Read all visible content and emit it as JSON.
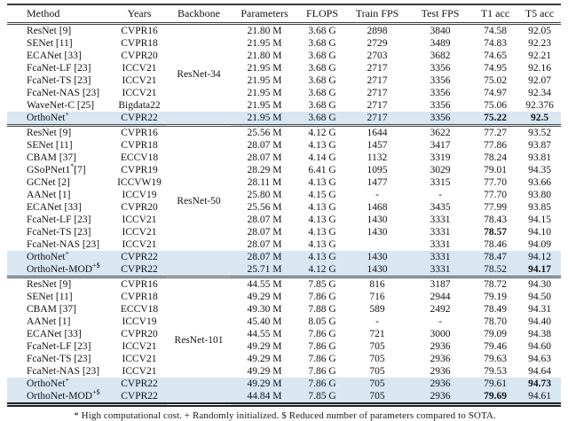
{
  "table": {
    "columns": [
      "Method",
      "Years",
      "Backbone",
      "Parameters",
      "FLOPS",
      "Train FPS",
      "Test FPS",
      "T1 acc",
      "T5 acc"
    ],
    "groups": [
      {
        "backbone": "ResNet-34",
        "label_row": 3,
        "rows": [
          {
            "method": {
              "text": "ResNet",
              "sup": "",
              "after": " [9]"
            },
            "years": "CVPR16",
            "params": "21.80 M",
            "flops": "3.68 G",
            "train_fps": "2898",
            "test_fps": "3840",
            "t1": "74.58",
            "t5": "92.05"
          },
          {
            "method": {
              "text": "SENet",
              "sup": "",
              "after": " [11]"
            },
            "years": "CVPR18",
            "params": "21.95 M",
            "flops": "3.68 G",
            "train_fps": "2729",
            "test_fps": "3489",
            "t1": "74.83",
            "t5": "92.23"
          },
          {
            "method": {
              "text": "ECANet",
              "sup": "",
              "after": " [33]"
            },
            "years": "CVPR20",
            "params": "21.80 M",
            "flops": "3.68 G",
            "train_fps": "2703",
            "test_fps": "3682",
            "t1": "74.65",
            "t5": "92.21"
          },
          {
            "method": {
              "text": "FcaNet-LF",
              "sup": "",
              "after": " [23]"
            },
            "years": "ICCV21",
            "params": "21.95 M",
            "flops": "3.68 G",
            "train_fps": "2717",
            "test_fps": "3356",
            "t1": "74.95",
            "t5": "92.16"
          },
          {
            "method": {
              "text": "FcaNet-TS",
              "sup": "",
              "after": " [23]"
            },
            "years": "ICCV21",
            "params": "21.95 M",
            "flops": "3.68 G",
            "train_fps": "2717",
            "test_fps": "3356",
            "t1": "75.02",
            "t5": "92.07"
          },
          {
            "method": {
              "text": "FcaNet-NAS",
              "sup": "",
              "after": " [23]"
            },
            "years": "ICCV21",
            "params": "21.95 M",
            "flops": "3.68 G",
            "train_fps": "2717",
            "test_fps": "3356",
            "t1": "74.97",
            "t5": "92.34"
          },
          {
            "method": {
              "text": "WaveNet-C",
              "sup": "",
              "after": " [25]"
            },
            "years": "Bigdata22",
            "params": "21.95 M",
            "flops": "3.68 G",
            "train_fps": "2717",
            "test_fps": "3356",
            "t1": "75.06",
            "t5": "92.376"
          },
          {
            "method": {
              "text": "OrthoNet",
              "sup": "+",
              "after": ""
            },
            "years": "CVPR22",
            "params": "21.95 M",
            "flops": "3.68 G",
            "train_fps": "2717",
            "test_fps": "3356",
            "t1": "75.22",
            "t5": "92.5",
            "t1_bold": true,
            "t5_bold": true,
            "hl": true
          }
        ]
      },
      {
        "backbone": "ResNet-50",
        "label_row": 5,
        "rows": [
          {
            "method": {
              "text": "ResNet",
              "sup": "",
              "after": " [9]"
            },
            "years": "CVPR16",
            "params": "25.56 M",
            "flops": "4.12 G",
            "train_fps": "1644",
            "test_fps": "3622",
            "t1": "77.27",
            "t5": "93.52"
          },
          {
            "method": {
              "text": "SENet",
              "sup": "",
              "after": " [11]"
            },
            "years": "CVPR18",
            "params": "28.07 M",
            "flops": "4.13 G",
            "train_fps": "1457",
            "test_fps": "3417",
            "t1": "77.86",
            "t5": "93.87"
          },
          {
            "method": {
              "text": "CBAM",
              "sup": "",
              "after": " [37]"
            },
            "years": "ECCV18",
            "params": "28.07 M",
            "flops": "4.14 G",
            "train_fps": "1132",
            "test_fps": "3319",
            "t1": "78.24",
            "t5": "93.81"
          },
          {
            "method": {
              "text": "GSoPNet1",
              "sup": "*",
              "after": "[7]"
            },
            "years": "CVPR19",
            "params": "28.29 M",
            "flops": "6.41 G",
            "train_fps": "1095",
            "test_fps": "3029",
            "t1": "79.01",
            "t5": "94.35"
          },
          {
            "method": {
              "text": "GCNet",
              "sup": "",
              "after": " [2]"
            },
            "years": "ICCVW19",
            "params": "28.11 M",
            "flops": "4.13 G",
            "train_fps": "1477",
            "test_fps": "3315",
            "t1": "77.70",
            "t5": "93.66"
          },
          {
            "method": {
              "text": "AANet",
              "sup": "",
              "after": " [1]"
            },
            "years": "ICCV19",
            "params": "25.80 M",
            "flops": "4.15 G",
            "train_fps": "-",
            "test_fps": "-",
            "t1": "77.70",
            "t5": "93.80"
          },
          {
            "method": {
              "text": "ECANet",
              "sup": "",
              "after": " [33]"
            },
            "years": "CVPR20",
            "params": "25.56 M",
            "flops": "4.13 G",
            "train_fps": "1468",
            "test_fps": "3435",
            "t1": "77.99",
            "t5": "93.85"
          },
          {
            "method": {
              "text": "FcaNet-LF",
              "sup": "",
              "after": " [23]"
            },
            "years": "ICCV21",
            "params": "28.07 M",
            "flops": "4.13 G",
            "train_fps": "1430",
            "test_fps": "3331",
            "t1": "78.43",
            "t5": "94.15"
          },
          {
            "method": {
              "text": "FcaNet-TS",
              "sup": "",
              "after": " [23]"
            },
            "years": "ICCV21",
            "params": "28.07 M",
            "flops": "4.13 G",
            "train_fps": "1430",
            "test_fps": "3331",
            "t1": "78.57",
            "t5": "94.10",
            "t1_bold": true
          },
          {
            "method": {
              "text": "FcaNet-NAS",
              "sup": "",
              "after": " [23]"
            },
            "years": "ICCV21",
            "params": "28.07 M",
            "flops": "4.13 G",
            "train_fps": "",
            "test_fps": "3331",
            "t1": "78.46",
            "t5": "94.09"
          },
          {
            "method": {
              "text": "OrthoNet",
              "sup": "+",
              "after": ""
            },
            "years": "CVPR22",
            "params": "28.07 M",
            "flops": "4.13 G",
            "train_fps": "1430",
            "test_fps": "3331",
            "t1": "78.47",
            "t5": "94.12",
            "hl": true
          },
          {
            "method": {
              "text": "OrthoNet-MOD",
              "sup": "+$",
              "after": ""
            },
            "years": "CVPR22",
            "params": "25.71 M",
            "flops": "4.12 G",
            "train_fps": "1430",
            "test_fps": "3331",
            "t1": "78.52",
            "t5": "94.17",
            "t5_bold": true,
            "hl": true
          }
        ]
      },
      {
        "backbone": "ResNet-101",
        "label_row": 4,
        "rows": [
          {
            "method": {
              "text": "ResNet",
              "sup": "",
              "after": " [9]"
            },
            "years": "CVPR16",
            "params": "44.55 M",
            "flops": "7.85 G",
            "train_fps": "816",
            "test_fps": "3187",
            "t1": "78.72",
            "t5": "94.30"
          },
          {
            "method": {
              "text": "SENet",
              "sup": "",
              "after": " [11]"
            },
            "years": "CVPR18",
            "params": "49.29 M",
            "flops": "7.86 G",
            "train_fps": "716",
            "test_fps": "2944",
            "t1": "79.19",
            "t5": "94.50"
          },
          {
            "method": {
              "text": "CBAM",
              "sup": "",
              "after": " [37]"
            },
            "years": "ECCV18",
            "params": "49.30 M",
            "flops": "7.88 G",
            "train_fps": "589",
            "test_fps": "2492",
            "t1": "78.49",
            "t5": "94.31"
          },
          {
            "method": {
              "text": "AANet",
              "sup": "",
              "after": " [1]"
            },
            "years": "ICCV19",
            "params": "45.40 M",
            "flops": "8.05 G",
            "train_fps": "-",
            "test_fps": "-",
            "t1": "78.70",
            "t5": "94.40"
          },
          {
            "method": {
              "text": "ECANet",
              "sup": "",
              "after": " [33]"
            },
            "years": "CVPR20",
            "params": "44.55 M",
            "flops": "7.86 G",
            "train_fps": "721",
            "test_fps": "3000",
            "t1": "79.09",
            "t5": "94.38"
          },
          {
            "method": {
              "text": "FcaNet-LF",
              "sup": "",
              "after": " [23]"
            },
            "years": "ICCV21",
            "params": "49.29 M",
            "flops": "7.86 G",
            "train_fps": "705",
            "test_fps": "2936",
            "t1": "79.46",
            "t5": "94.60"
          },
          {
            "method": {
              "text": "FcaNet-TS",
              "sup": "",
              "after": " [23]"
            },
            "years": "ICCV21",
            "params": "49.29 M",
            "flops": "7.86 G",
            "train_fps": "705",
            "test_fps": "2936",
            "t1": "79.63",
            "t5": "94.63"
          },
          {
            "method": {
              "text": "FcaNet-NAS",
              "sup": "",
              "after": " [23]"
            },
            "years": "ICCV21",
            "params": "49.29 M",
            "flops": "7.86 G",
            "train_fps": "705",
            "test_fps": "2936",
            "t1": "79.53",
            "t5": "94.64"
          },
          {
            "method": {
              "text": "OrthoNet",
              "sup": "+",
              "after": ""
            },
            "years": "CVPR22",
            "params": "49.29 M",
            "flops": "7.86 G",
            "train_fps": "705",
            "test_fps": "2936",
            "t1": "79.61",
            "t5": "94.73",
            "t5_bold": true,
            "hl": true
          },
          {
            "method": {
              "text": "OrthoNet-MOD",
              "sup": "+$",
              "after": ""
            },
            "years": "CVPR22",
            "params": "44.84 M",
            "flops": "7.85 G",
            "train_fps": "705",
            "test_fps": "2936",
            "t1": "79.69",
            "t5": "94.61",
            "t1_bold": true,
            "hl": true
          }
        ]
      }
    ],
    "footnote": "* High computational cost. + Randomly initialized. $ Reduced number of parameters compared to SOTA.",
    "colors": {
      "highlight_row": "#d9e7f3",
      "rule": "#3b3b3b",
      "text": "#131313"
    }
  }
}
